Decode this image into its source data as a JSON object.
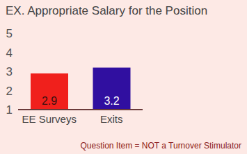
{
  "chart_data": {
    "type": "bar",
    "title": "EX. Appropriate Salary for the Position",
    "categories": [
      "EE Surveys",
      "Exits"
    ],
    "values": [
      2.9,
      3.2
    ],
    "colors": [
      "#f0201c",
      "#300fa0"
    ],
    "ylim": [
      1,
      5
    ],
    "yticks": [
      1,
      2,
      3,
      4,
      5
    ],
    "grid": false,
    "data_labels": true,
    "annotations": [
      "Question Item = NOT a Turnover Stimulator"
    ]
  }
}
